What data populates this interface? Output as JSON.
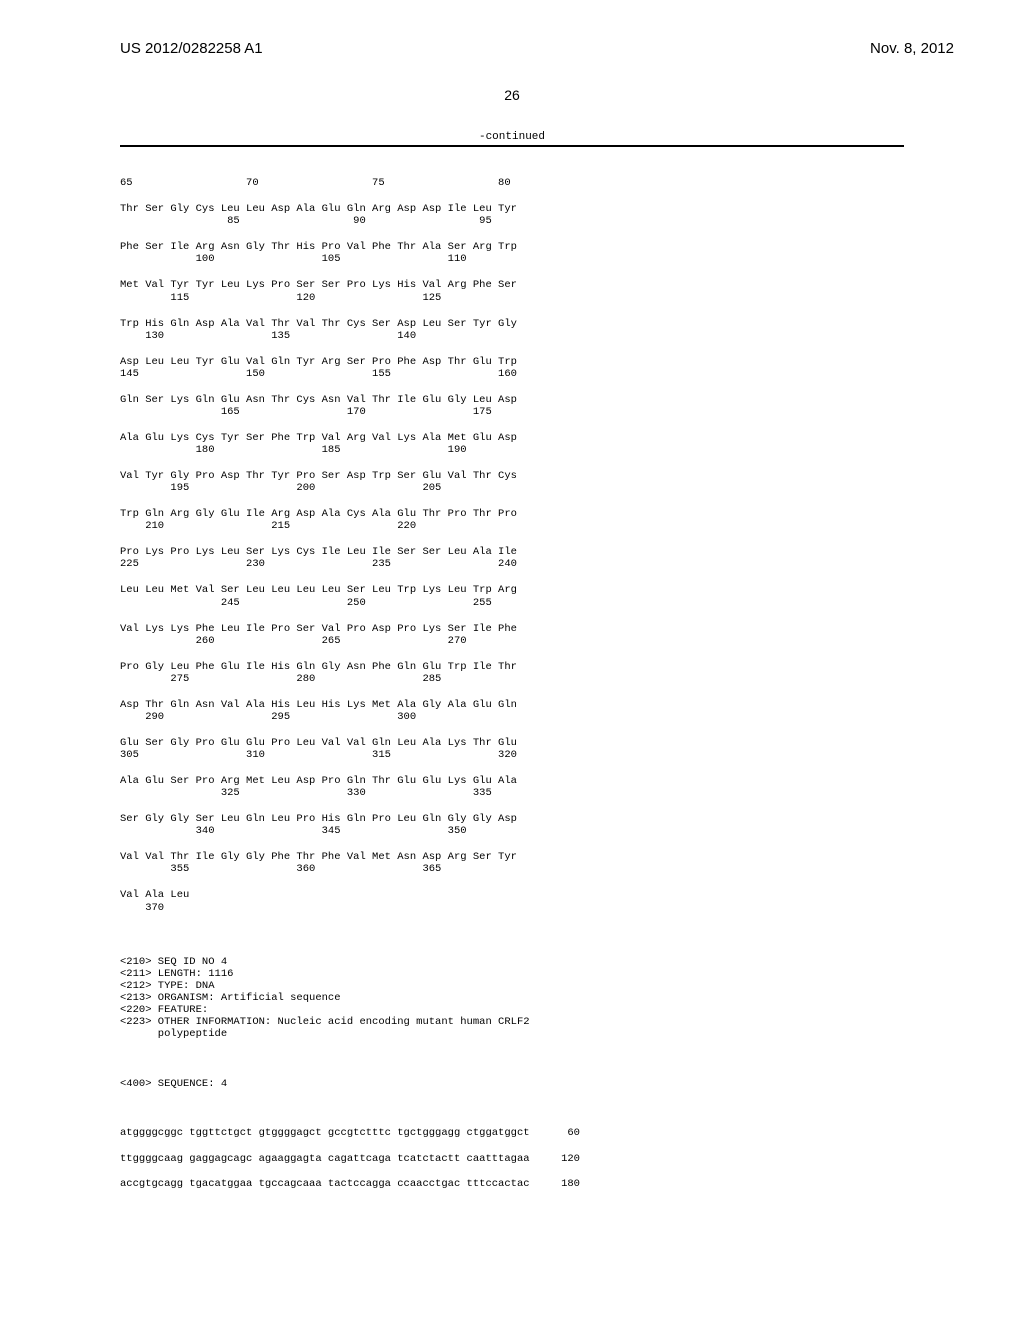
{
  "header": {
    "pub_number": "US 2012/0282258 A1",
    "pub_date": "Nov. 8, 2012"
  },
  "page_number": "26",
  "continued_label": "-continued",
  "sequence_rows": [
    {
      "line1": "65                  70                  75                  80",
      "line2": ""
    },
    {
      "line1": "Thr Ser Gly Cys Leu Leu Asp Ala Glu Gln Arg Asp Asp Ile Leu Tyr",
      "line2": "                 85                  90                  95"
    },
    {
      "line1": "Phe Ser Ile Arg Asn Gly Thr His Pro Val Phe Thr Ala Ser Arg Trp",
      "line2": "            100                 105                 110"
    },
    {
      "line1": "Met Val Tyr Tyr Leu Lys Pro Ser Ser Pro Lys His Val Arg Phe Ser",
      "line2": "        115                 120                 125"
    },
    {
      "line1": "Trp His Gln Asp Ala Val Thr Val Thr Cys Ser Asp Leu Ser Tyr Gly",
      "line2": "    130                 135                 140"
    },
    {
      "line1": "Asp Leu Leu Tyr Glu Val Gln Tyr Arg Ser Pro Phe Asp Thr Glu Trp",
      "line2": "145                 150                 155                 160"
    },
    {
      "line1": "Gln Ser Lys Gln Glu Asn Thr Cys Asn Val Thr Ile Glu Gly Leu Asp",
      "line2": "                165                 170                 175"
    },
    {
      "line1": "Ala Glu Lys Cys Tyr Ser Phe Trp Val Arg Val Lys Ala Met Glu Asp",
      "line2": "            180                 185                 190"
    },
    {
      "line1": "Val Tyr Gly Pro Asp Thr Tyr Pro Ser Asp Trp Ser Glu Val Thr Cys",
      "line2": "        195                 200                 205"
    },
    {
      "line1": "Trp Gln Arg Gly Glu Ile Arg Asp Ala Cys Ala Glu Thr Pro Thr Pro",
      "line2": "    210                 215                 220"
    },
    {
      "line1": "Pro Lys Pro Lys Leu Ser Lys Cys Ile Leu Ile Ser Ser Leu Ala Ile",
      "line2": "225                 230                 235                 240"
    },
    {
      "line1": "Leu Leu Met Val Ser Leu Leu Leu Leu Ser Leu Trp Lys Leu Trp Arg",
      "line2": "                245                 250                 255"
    },
    {
      "line1": "Val Lys Lys Phe Leu Ile Pro Ser Val Pro Asp Pro Lys Ser Ile Phe",
      "line2": "            260                 265                 270"
    },
    {
      "line1": "Pro Gly Leu Phe Glu Ile His Gln Gly Asn Phe Gln Glu Trp Ile Thr",
      "line2": "        275                 280                 285"
    },
    {
      "line1": "Asp Thr Gln Asn Val Ala His Leu His Lys Met Ala Gly Ala Glu Gln",
      "line2": "    290                 295                 300"
    },
    {
      "line1": "Glu Ser Gly Pro Glu Glu Pro Leu Val Val Gln Leu Ala Lys Thr Glu",
      "line2": "305                 310                 315                 320"
    },
    {
      "line1": "Ala Glu Ser Pro Arg Met Leu Asp Pro Gln Thr Glu Glu Lys Glu Ala",
      "line2": "                325                 330                 335"
    },
    {
      "line1": "Ser Gly Gly Ser Leu Gln Leu Pro His Gln Pro Leu Gln Gly Gly Asp",
      "line2": "            340                 345                 350"
    },
    {
      "line1": "Val Val Thr Ile Gly Gly Phe Thr Phe Val Met Asn Asp Arg Ser Tyr",
      "line2": "        355                 360                 365"
    },
    {
      "line1": "Val Ala Leu",
      "line2": "    370"
    }
  ],
  "meta": [
    "<210> SEQ ID NO 4",
    "<211> LENGTH: 1116",
    "<212> TYPE: DNA",
    "<213> ORGANISM: Artificial sequence",
    "<220> FEATURE:",
    "<223> OTHER INFORMATION: Nucleic acid encoding mutant human CRLF2",
    "      polypeptide"
  ],
  "sequence_label": "<400> SEQUENCE: 4",
  "nuc_rows": [
    {
      "seq": "atggggcggc tggttctgct gtggggagct gccgtctttc tgctgggagg ctggatggct",
      "pos": " 60"
    },
    {
      "seq": "ttggggcaag gaggagcagc agaaggagta cagattcaga tcatctactt caatttagaa",
      "pos": "120"
    },
    {
      "seq": "accgtgcagg tgacatggaa tgccagcaaa tactccagga ccaacctgac tttccactac",
      "pos": "180"
    }
  ]
}
